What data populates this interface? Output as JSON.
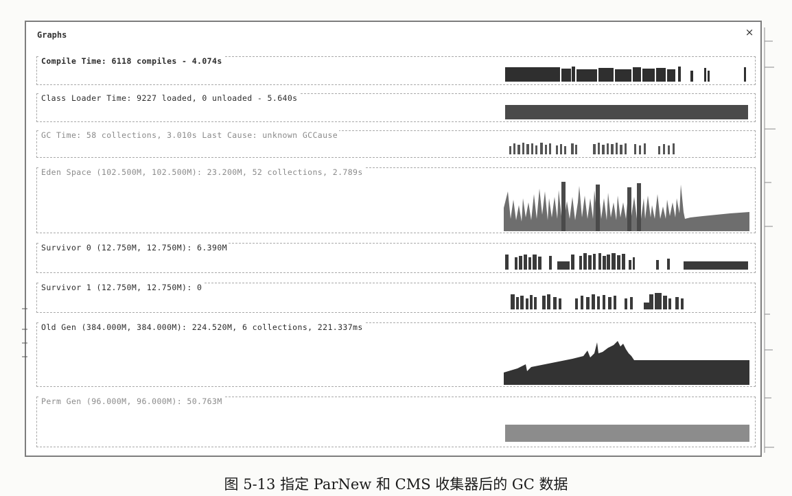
{
  "window": {
    "title": "Graphs",
    "close_glyph": "×"
  },
  "panels": [
    {
      "label": "Compile Time: 6118 compiles - 4.074s"
    },
    {
      "label": "Class Loader Time: 9227 loaded, 0 unloaded - 5.640s"
    },
    {
      "label": "GC Time: 58 collections, 3.010s  Last Cause: unknown GCCause"
    },
    {
      "label": "Eden Space (102.500M, 102.500M): 23.200M, 52 collections, 2.789s"
    },
    {
      "label": "Survivor 0 (12.750M, 12.750M): 6.390M"
    },
    {
      "label": "Survivor 1 (12.750M, 12.750M): 0"
    },
    {
      "label": "Old Gen (384.000M, 384.000M): 224.520M, 6 collections, 221.337ms"
    },
    {
      "label": "Perm Gen (96.000M, 96.000M): 50.763M"
    }
  ],
  "caption": "图 5-13   指定 ParNew 和 CMS 收集器后的 GC 数据",
  "colors": {
    "plot_dark": "#2f2f2f",
    "plot_mid": "#4a4a4a",
    "plot_light": "#6e6e6e",
    "plot_faint": "#8c8c8c",
    "border": "#a8a8a8"
  },
  "icons": {
    "close": "close-icon"
  }
}
